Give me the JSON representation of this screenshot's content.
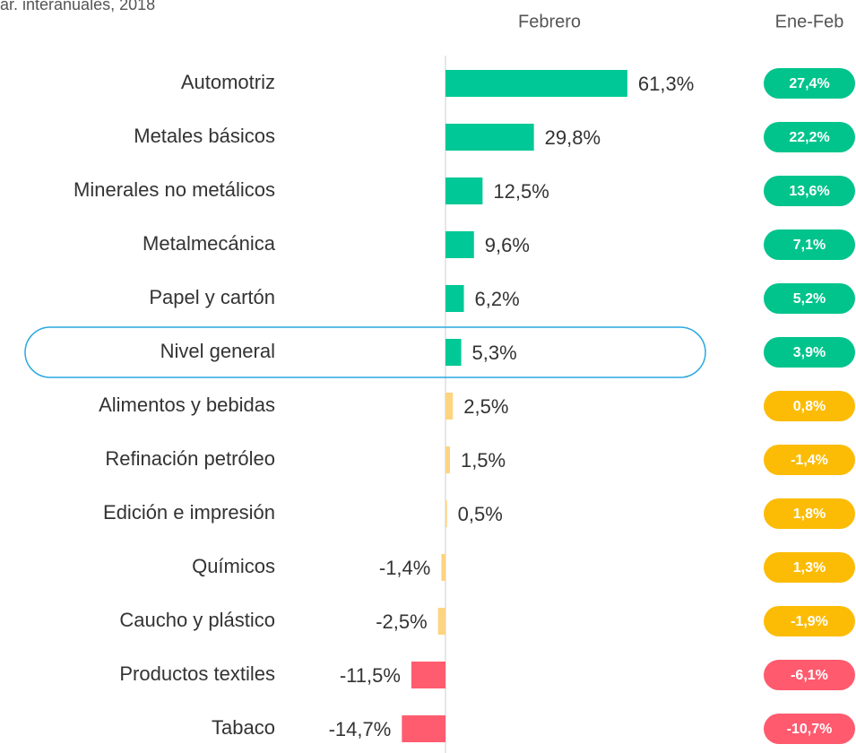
{
  "chart_data": {
    "type": "bar",
    "orientation": "horizontal",
    "title": "ar. interanuales, 2018",
    "categories": [
      "Automotriz",
      "Metales básicos",
      "Minerales no metálicos",
      "Metalmecánica",
      "Papel y cartón",
      "Nivel general",
      "Alimentos y bebidas",
      "Refinación petróleo",
      "Edición e impresión",
      "Químicos",
      "Caucho y plástico",
      "Productos textiles",
      "Tabaco"
    ],
    "highlight_index": 5,
    "series": [
      {
        "name": "Febrero",
        "values": [
          61.3,
          29.8,
          12.5,
          9.6,
          6.2,
          5.3,
          2.5,
          1.5,
          0.5,
          -1.4,
          -2.5,
          -11.5,
          -14.7
        ],
        "value_labels": [
          "61,3%",
          "29,8%",
          "12,5%",
          "9,6%",
          "6,2%",
          "5,3%",
          "2,5%",
          "1,5%",
          "0,5%",
          "-1,4%",
          "-2,5%",
          "-11,5%",
          "-14,7%"
        ],
        "colors": [
          "#00c896",
          "#00c896",
          "#00c896",
          "#00c896",
          "#00c896",
          "#00c896",
          "#fdd47f",
          "#fdd47f",
          "#fdd47f",
          "#fdd47f",
          "#fdd47f",
          "#ff5c6f",
          "#ff5c6f"
        ]
      },
      {
        "name": "Ene-Feb",
        "values": [
          27.4,
          22.2,
          13.6,
          7.1,
          5.2,
          3.9,
          0.8,
          -1.4,
          1.8,
          1.3,
          -1.9,
          -6.1,
          -10.7
        ],
        "value_labels": [
          "27,4%",
          "22,2%",
          "13,6%",
          "7,1%",
          "5,2%",
          "3,9%",
          "0,8%",
          "-1,4%",
          "1,8%",
          "1,3%",
          "-1,9%",
          "-6,1%",
          "-10,7%"
        ],
        "colors": [
          "#00c48c",
          "#00c48c",
          "#00c48c",
          "#00c48c",
          "#00c48c",
          "#00c48c",
          "#fcbc06",
          "#fcbc06",
          "#fcbc06",
          "#fcbc06",
          "#fcbc06",
          "#ff5a6e",
          "#ff5a6e"
        ]
      }
    ]
  }
}
